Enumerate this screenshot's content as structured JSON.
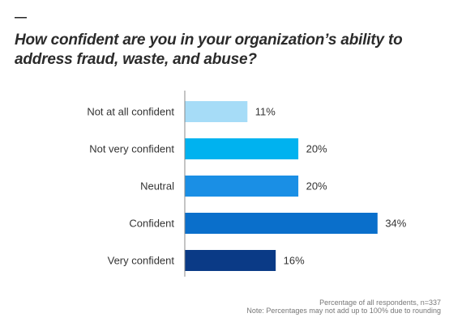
{
  "header": {
    "dash": "—",
    "title": "How confident are you in your organization’s ability to address fraud, waste, and abuse?"
  },
  "chart_data": {
    "type": "bar",
    "orientation": "horizontal",
    "categories": [
      "Not at all confident",
      "Not very confident",
      "Neutral",
      "Confident",
      "Very confident"
    ],
    "values": [
      11,
      20,
      20,
      34,
      16
    ],
    "value_labels": [
      "11%",
      "20%",
      "20%",
      "34%",
      "16%"
    ],
    "colors": [
      "#a6dcf7",
      "#00b2ef",
      "#1a8fe5",
      "#0a6fcb",
      "#0a3a86"
    ],
    "unit": "%",
    "xlim": [
      0,
      100
    ],
    "grid": false,
    "legend": "none"
  },
  "footnotes": {
    "respondents": "Percentage of all respondents, n=337",
    "note": "Note: Percentages may not add up to 100% due to rounding"
  }
}
